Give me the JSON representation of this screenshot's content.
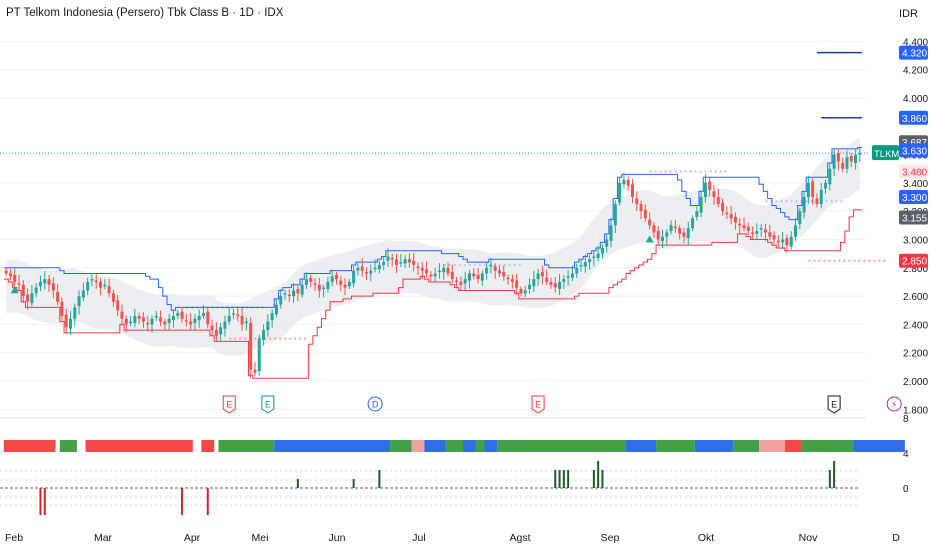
{
  "header": {
    "title": "PT Telkom Indonesia (Persero) Tbk Class B · 1D · IDX",
    "currency": "IDR"
  },
  "colors": {
    "up": "#26a69a",
    "down": "#ef5350",
    "upper_channel": "#2962ff",
    "lower_channel": "#f23645",
    "band_fill": "#e9ebee",
    "bar_red": "#f44848",
    "bar_green": "#43a047",
    "bar_blue": "#2f6ee8",
    "bar_pink": "#f2a1a1"
  },
  "chart_data": {
    "type": "candlestick",
    "price_axis": {
      "ticks": [
        "4.400",
        "4.200",
        "4.000",
        "3.600",
        "3.400",
        "3.200",
        "3.000",
        "2.800",
        "2.600",
        "2.400",
        "2.200",
        "2.000",
        "1.800"
      ],
      "range": [
        1760,
        4480
      ]
    },
    "time_axis": {
      "labels": [
        "Feb",
        "Mar",
        "Apr",
        "Mei",
        "Jun",
        "Jul",
        "Agst",
        "Sep",
        "Okt",
        "Nov",
        "D"
      ]
    },
    "price_labels": [
      {
        "text": "4.320",
        "value": 4320,
        "kind": "blue"
      },
      {
        "text": "3.860",
        "value": 3860,
        "kind": "blue"
      },
      {
        "text": "3.687",
        "value": 3687,
        "kind": "gray"
      },
      {
        "text": "3.630",
        "value": 3630,
        "kind": "blue"
      },
      {
        "text": "3.480",
        "value": 3480,
        "kind": "redtext"
      },
      {
        "text": "3.300",
        "value": 3300,
        "kind": "blue"
      },
      {
        "text": "3.155",
        "value": 3155,
        "kind": "gray"
      },
      {
        "text": "2.850",
        "value": 2850,
        "kind": "red"
      }
    ],
    "symbol_tag": {
      "text": "TLKM",
      "value": 3610
    },
    "horizontal_lines": [
      {
        "value": 4320,
        "x_start_day": 189
      },
      {
        "value": 3860,
        "x_start_day": 190
      }
    ],
    "current_price": 3610,
    "candles_close": [
      2760,
      2740,
      2700,
      2680,
      2600,
      2560,
      2620,
      2660,
      2700,
      2720,
      2680,
      2640,
      2560,
      2460,
      2380,
      2440,
      2520,
      2600,
      2640,
      2700,
      2720,
      2700,
      2660,
      2680,
      2620,
      2560,
      2500,
      2440,
      2400,
      2420,
      2460,
      2440,
      2420,
      2400,
      2440,
      2460,
      2420,
      2400,
      2440,
      2460,
      2480,
      2440,
      2420,
      2400,
      2440,
      2460,
      2480,
      2400,
      2360,
      2320,
      2380,
      2420,
      2460,
      2480,
      2460,
      2400,
      2420,
      2080,
      2060,
      2300,
      2360,
      2420,
      2480,
      2540,
      2600,
      2620,
      2600,
      2640,
      2620,
      2680,
      2720,
      2700,
      2680,
      2640,
      2660,
      2700,
      2740,
      2720,
      2680,
      2660,
      2700,
      2780,
      2800,
      2780,
      2760,
      2780,
      2800,
      2820,
      2840,
      2880,
      2860,
      2820,
      2840,
      2860,
      2840,
      2820,
      2800,
      2780,
      2760,
      2740,
      2760,
      2780,
      2800,
      2760,
      2720,
      2700,
      2680,
      2720,
      2760,
      2740,
      2720,
      2760,
      2800,
      2820,
      2780,
      2760,
      2740,
      2720,
      2700,
      2660,
      2620,
      2640,
      2680,
      2720,
      2760,
      2740,
      2700,
      2680,
      2660,
      2700,
      2720,
      2740,
      2760,
      2800,
      2820,
      2840,
      2860,
      2880,
      2900,
      2940,
      3000,
      3100,
      3250,
      3400,
      3420,
      3380,
      3300,
      3250,
      3200,
      3150,
      3100,
      3050,
      3000,
      3020,
      3050,
      3100,
      3080,
      3040,
      3020,
      3080,
      3150,
      3200,
      3300,
      3400,
      3350,
      3300,
      3250,
      3200,
      3180,
      3150,
      3120,
      3100,
      3080,
      3060,
      3040,
      3060,
      3080,
      3050,
      3020,
      3000,
      2980,
      3000,
      2960,
      3020,
      3100,
      3200,
      3300,
      3400,
      3300,
      3250,
      3350,
      3400,
      3500,
      3600,
      3550,
      3500,
      3580,
      3550,
      3600,
      3610
    ],
    "band": {
      "upper_base": 2860,
      "lower_base": 2480
    },
    "histogram": {
      "axis_ticks": [
        "8",
        "4",
        "0"
      ],
      "segments": [
        {
          "from": 0,
          "to": 12,
          "color": "red"
        },
        {
          "from": 13,
          "to": 17,
          "color": "green"
        },
        {
          "from": 19,
          "to": 44,
          "color": "red"
        },
        {
          "from": 46,
          "to": 49,
          "color": "red"
        },
        {
          "from": 50,
          "to": 63,
          "color": "green"
        },
        {
          "from": 63,
          "to": 90,
          "color": "blue"
        },
        {
          "from": 90,
          "to": 95,
          "color": "green"
        },
        {
          "from": 95,
          "to": 98,
          "color": "pink"
        },
        {
          "from": 98,
          "to": 103,
          "color": "blue"
        },
        {
          "from": 103,
          "to": 107,
          "color": "green"
        },
        {
          "from": 107,
          "to": 110,
          "color": "blue"
        },
        {
          "from": 110,
          "to": 112,
          "color": "green"
        },
        {
          "from": 112,
          "to": 115,
          "color": "blue"
        },
        {
          "from": 115,
          "to": 145,
          "color": "green"
        },
        {
          "from": 145,
          "to": 152,
          "color": "blue"
        },
        {
          "from": 152,
          "to": 161,
          "color": "green"
        },
        {
          "from": 161,
          "to": 170,
          "color": "blue"
        },
        {
          "from": 170,
          "to": 176,
          "color": "green"
        },
        {
          "from": 176,
          "to": 182,
          "color": "pink"
        },
        {
          "from": 182,
          "to": 186,
          "color": "red"
        },
        {
          "from": 186,
          "to": 198,
          "color": "green"
        },
        {
          "from": 198,
          "to": 210,
          "color": "blue"
        }
      ]
    },
    "events": [
      {
        "label": "E",
        "day": 52,
        "kind": "earnings-red"
      },
      {
        "label": "E",
        "day": 61,
        "kind": "earnings-green"
      },
      {
        "label": "D",
        "day": 86,
        "kind": "dividend"
      },
      {
        "label": "E",
        "day": 124,
        "kind": "earnings-red"
      },
      {
        "label": "E",
        "day": 193,
        "kind": "earnings-dark"
      },
      {
        "label": "⚡",
        "day": 207,
        "kind": "flash"
      }
    ]
  }
}
